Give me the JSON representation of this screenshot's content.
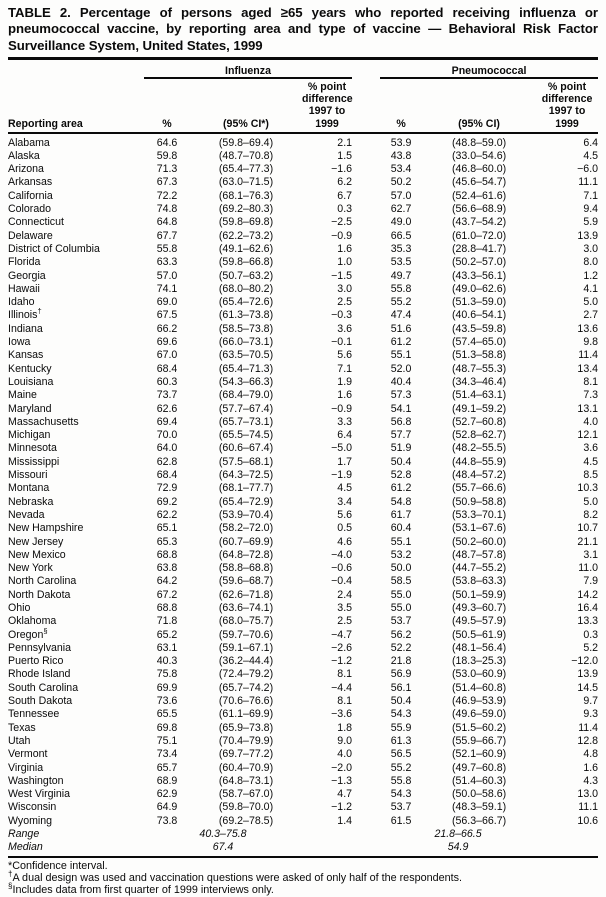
{
  "title": "TABLE 2. Percentage of persons aged ≥65 years who reported receiving influenza or pneumococcal vaccine, by reporting area and type of vaccine — Behavioral Risk Factor Surveillance System, United States, 1999",
  "table": {
    "group_headers": [
      "Influenza",
      "Pneumococcal"
    ],
    "columns": {
      "area_label": "Reporting area",
      "pct": "%",
      "ci_influenza": "(95% CI*)",
      "ci_pneumococcal": "(95% CI)",
      "diff": "% point\ndifference\n1997 to 1999"
    },
    "rows": [
      [
        "Alabama",
        "64.6",
        "(59.8–69.4)",
        "2.1",
        "53.9",
        "(48.8–59.0)",
        "6.4"
      ],
      [
        "Alaska",
        "59.8",
        "(48.7–70.8)",
        "1.5",
        "43.8",
        "(33.0–54.6)",
        "4.5"
      ],
      [
        "Arizona",
        "71.3",
        "(65.4–77.3)",
        "−1.6",
        "53.4",
        "(46.8–60.0)",
        "−6.0"
      ],
      [
        "Arkansas",
        "67.3",
        "(63.0–71.5)",
        "6.2",
        "50.2",
        "(45.6–54.7)",
        "11.1"
      ],
      [
        "California",
        "72.2",
        "(68.1–76.3)",
        "6.7",
        "57.0",
        "(52.4–61.6)",
        "7.1"
      ],
      [
        "Colorado",
        "74.8",
        "(69.2–80.3)",
        "0.3",
        "62.7",
        "(56.6–68.9)",
        "9.4"
      ],
      [
        "Connecticut",
        "64.8",
        "(59.8–69.8)",
        "−2.5",
        "49.0",
        "(43.7–54.2)",
        "5.9"
      ],
      [
        "Delaware",
        "67.7",
        "(62.2–73.2)",
        "−0.9",
        "66.5",
        "(61.0–72.0)",
        "13.9"
      ],
      [
        "District of Columbia",
        "55.8",
        "(49.1–62.6)",
        "1.6",
        "35.3",
        "(28.8–41.7)",
        "3.0"
      ],
      [
        "Florida",
        "63.3",
        "(59.8–66.8)",
        "1.0",
        "53.5",
        "(50.2–57.0)",
        "8.0"
      ],
      [
        "Georgia",
        "57.0",
        "(50.7–63.2)",
        "−1.5",
        "49.7",
        "(43.3–56.1)",
        "1.2"
      ],
      [
        "Hawaii",
        "74.1",
        "(68.0–80.2)",
        "3.0",
        "55.8",
        "(49.0–62.6)",
        "4.1"
      ],
      [
        "Idaho",
        "69.0",
        "(65.4–72.6)",
        "2.5",
        "55.2",
        "(51.3–59.0)",
        "5.0"
      ],
      [
        "Illinois†",
        "67.5",
        "(61.3–73.8)",
        "−0.3",
        "47.4",
        "(40.6–54.1)",
        "2.7"
      ],
      [
        "Indiana",
        "66.2",
        "(58.5–73.8)",
        "3.6",
        "51.6",
        "(43.5–59.8)",
        "13.6"
      ],
      [
        "Iowa",
        "69.6",
        "(66.0–73.1)",
        "−0.1",
        "61.2",
        "(57.4–65.0)",
        "9.8"
      ],
      [
        "Kansas",
        "67.0",
        "(63.5–70.5)",
        "5.6",
        "55.1",
        "(51.3–58.8)",
        "11.4"
      ],
      [
        "Kentucky",
        "68.4",
        "(65.4–71.3)",
        "7.1",
        "52.0",
        "(48.7–55.3)",
        "13.4"
      ],
      [
        "Louisiana",
        "60.3",
        "(54.3–66.3)",
        "1.9",
        "40.4",
        "(34.3–46.4)",
        "8.1"
      ],
      [
        "Maine",
        "73.7",
        "(68.4–79.0)",
        "1.6",
        "57.3",
        "(51.4–63.1)",
        "7.3"
      ],
      [
        "Maryland",
        "62.6",
        "(57.7–67.4)",
        "−0.9",
        "54.1",
        "(49.1–59.2)",
        "13.1"
      ],
      [
        "Massachusetts",
        "69.4",
        "(65.7–73.1)",
        "3.3",
        "56.8",
        "(52.7–60.8)",
        "4.0"
      ],
      [
        "Michigan",
        "70.0",
        "(65.5–74.5)",
        "6.4",
        "57.7",
        "(52.8–62.7)",
        "12.1"
      ],
      [
        "Minnesota",
        "64.0",
        "(60.6–67.4)",
        "−5.0",
        "51.9",
        "(48.2–55.5)",
        "3.6"
      ],
      [
        "Mississippi",
        "62.8",
        "(57.5–68.1)",
        "1.7",
        "50.4",
        "(44.8–55.9)",
        "4.5"
      ],
      [
        "Missouri",
        "68.4",
        "(64.3–72.5)",
        "−1.9",
        "52.8",
        "(48.4–57.2)",
        "8.5"
      ],
      [
        "Montana",
        "72.9",
        "(68.1–77.7)",
        "4.5",
        "61.2",
        "(55.7–66.6)",
        "10.3"
      ],
      [
        "Nebraska",
        "69.2",
        "(65.4–72.9)",
        "3.4",
        "54.8",
        "(50.9–58.8)",
        "5.0"
      ],
      [
        "Nevada",
        "62.2",
        "(53.9–70.4)",
        "5.6",
        "61.7",
        "(53.3–70.1)",
        "8.2"
      ],
      [
        "New Hampshire",
        "65.1",
        "(58.2–72.0)",
        "0.5",
        "60.4",
        "(53.1–67.6)",
        "10.7"
      ],
      [
        "New Jersey",
        "65.3",
        "(60.7–69.9)",
        "4.6",
        "55.1",
        "(50.2–60.0)",
        "21.1"
      ],
      [
        "New Mexico",
        "68.8",
        "(64.8–72.8)",
        "−4.0",
        "53.2",
        "(48.7–57.8)",
        "3.1"
      ],
      [
        "New York",
        "63.8",
        "(58.8–68.8)",
        "−0.6",
        "50.0",
        "(44.7–55.2)",
        "11.0"
      ],
      [
        "North Carolina",
        "64.2",
        "(59.6–68.7)",
        "−0.4",
        "58.5",
        "(53.8–63.3)",
        "7.9"
      ],
      [
        "North Dakota",
        "67.2",
        "(62.6–71.8)",
        "2.4",
        "55.0",
        "(50.1–59.9)",
        "14.2"
      ],
      [
        "Ohio",
        "68.8",
        "(63.6–74.1)",
        "3.5",
        "55.0",
        "(49.3–60.7)",
        "16.4"
      ],
      [
        "Oklahoma",
        "71.8",
        "(68.0–75.7)",
        "2.5",
        "53.7",
        "(49.5–57.9)",
        "13.3"
      ],
      [
        "Oregon§",
        "65.2",
        "(59.7–70.6)",
        "−4.7",
        "56.2",
        "(50.5–61.9)",
        "0.3"
      ],
      [
        "Pennsylvania",
        "63.1",
        "(59.1–67.1)",
        "−2.6",
        "52.2",
        "(48.1–56.4)",
        "5.2"
      ],
      [
        "Puerto Rico",
        "40.3",
        "(36.2–44.4)",
        "−1.2",
        "21.8",
        "(18.3–25.3)",
        "−12.0"
      ],
      [
        "Rhode Island",
        "75.8",
        "(72.4–79.2)",
        "8.1",
        "56.9",
        "(53.0–60.9)",
        "13.9"
      ],
      [
        "South Carolina",
        "69.9",
        "(65.7–74.2)",
        "−4.4",
        "56.1",
        "(51.4–60.8)",
        "14.5"
      ],
      [
        "South Dakota",
        "73.6",
        "(70.6–76.6)",
        "8.1",
        "50.4",
        "(46.9–53.9)",
        "9.7"
      ],
      [
        "Tennessee",
        "65.5",
        "(61.1–69.9)",
        "−3.6",
        "54.3",
        "(49.6–59.0)",
        "9.3"
      ],
      [
        "Texas",
        "69.8",
        "(65.9–73.8)",
        "1.8",
        "55.9",
        "(51.5–60.2)",
        "11.4"
      ],
      [
        "Utah",
        "75.1",
        "(70.4–79.9)",
        "9.0",
        "61.3",
        "(55.9–66.7)",
        "12.8"
      ],
      [
        "Vermont",
        "73.4",
        "(69.7–77.2)",
        "4.0",
        "56.5",
        "(52.1–60.9)",
        "4.8"
      ],
      [
        "Virginia",
        "65.7",
        "(60.4–70.9)",
        "−2.0",
        "55.2",
        "(49.7–60.8)",
        "1.6"
      ],
      [
        "Washington",
        "68.9",
        "(64.8–73.1)",
        "−1.3",
        "55.8",
        "(51.4–60.3)",
        "4.3"
      ],
      [
        "West Virginia",
        "62.9",
        "(58.7–67.0)",
        "4.7",
        "54.3",
        "(50.0–58.6)",
        "13.0"
      ],
      [
        "Wisconsin",
        "64.9",
        "(59.8–70.0)",
        "−1.2",
        "53.7",
        "(48.3–59.1)",
        "11.1"
      ],
      [
        "Wyoming",
        "73.8",
        "(69.2–78.5)",
        "1.4",
        "61.5",
        "(56.3–66.7)",
        "10.6"
      ]
    ],
    "range": {
      "label": "Range",
      "influenza": "40.3–75.8",
      "pneumococcal": "21.8–66.5"
    },
    "median": {
      "label": "Median",
      "influenza": "67.4",
      "pneumococcal": "54.9"
    }
  },
  "footnotes": [
    {
      "marker": "*",
      "text": "Confidence interval."
    },
    {
      "marker": "†",
      "text": "A dual design was used and vaccination questions were asked of only half of the respondents."
    },
    {
      "marker": "§",
      "text": "Includes data from first quarter of 1999 interviews only."
    }
  ]
}
